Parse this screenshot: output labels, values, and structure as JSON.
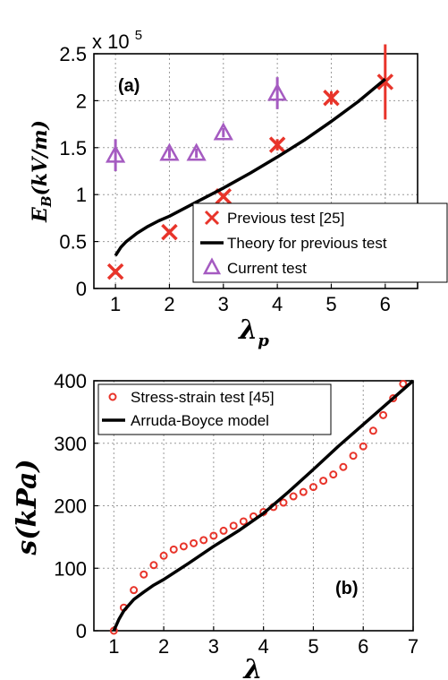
{
  "chart_data": [
    {
      "type": "scatter",
      "panel_label": "(a)",
      "multiplier_label": "x 10",
      "multiplier_exponent": "5",
      "ylabel_main": "E",
      "ylabel_sub": "B",
      "ylabel_unit": "(kV/m)",
      "xlabel_main": "λ",
      "xlabel_sub": "p",
      "xlim": [
        0.6,
        6.6
      ],
      "ylim": [
        0,
        2.5
      ],
      "xticks": [
        "1",
        "2",
        "3",
        "4",
        "5",
        "6"
      ],
      "yticks": [
        "0",
        "0.5",
        "1",
        "1.5",
        "2",
        "2.5"
      ],
      "grid": true,
      "legend_position": "lower-right",
      "series": [
        {
          "name": "Previous test [25]",
          "marker": "x",
          "color": "#e8342a",
          "points": [
            {
              "x": 1,
              "y": 0.18,
              "err": 0
            },
            {
              "x": 2,
              "y": 0.6,
              "err": 0
            },
            {
              "x": 3,
              "y": 0.98,
              "err": 0
            },
            {
              "x": 4,
              "y": 1.53,
              "err": 0.06
            },
            {
              "x": 5,
              "y": 2.03,
              "err": 0.07
            },
            {
              "x": 6,
              "y": 2.2,
              "err": 0.4
            }
          ]
        },
        {
          "name": "Theory for previous test",
          "marker": "line",
          "color": "#000000",
          "x": [
            1.0,
            1.1,
            1.2,
            1.4,
            1.6,
            1.8,
            2.0,
            2.5,
            3.0,
            3.5,
            4.0,
            4.5,
            5.0,
            5.5,
            6.0
          ],
          "y": [
            0.35,
            0.44,
            0.5,
            0.59,
            0.66,
            0.72,
            0.77,
            0.92,
            1.07,
            1.23,
            1.4,
            1.58,
            1.78,
            1.99,
            2.23
          ]
        },
        {
          "name": "Current test",
          "marker": "triangle",
          "color": "#a55bc1",
          "points": [
            {
              "x": 1,
              "y": 1.42,
              "err": 0.17
            },
            {
              "x": 2,
              "y": 1.44,
              "err": 0.05
            },
            {
              "x": 2.5,
              "y": 1.44,
              "err": 0.05
            },
            {
              "x": 3,
              "y": 1.66,
              "err": 0.05
            },
            {
              "x": 4,
              "y": 2.08,
              "err": 0.17
            }
          ]
        }
      ]
    },
    {
      "type": "scatter",
      "panel_label": "(b)",
      "ylabel_main": "s",
      "ylabel_unit": "(kPa)",
      "xlabel_main": "λ",
      "xlim": [
        0.6,
        7
      ],
      "ylim": [
        0,
        400
      ],
      "xticks": [
        "1",
        "2",
        "3",
        "4",
        "5",
        "6",
        "7"
      ],
      "yticks": [
        "0",
        "100",
        "200",
        "300",
        "400"
      ],
      "grid": true,
      "legend_position": "upper-left",
      "series": [
        {
          "name": "Stress-strain test [45]",
          "marker": "circle",
          "color": "#e8342a",
          "x": [
            1.0,
            1.2,
            1.4,
            1.6,
            1.8,
            2.0,
            2.2,
            2.4,
            2.6,
            2.8,
            3.0,
            3.2,
            3.4,
            3.6,
            3.8,
            4.0,
            4.2,
            4.4,
            4.6,
            4.8,
            5.0,
            5.2,
            5.4,
            5.6,
            5.8,
            6.0,
            6.2,
            6.4,
            6.6,
            6.8
          ],
          "y": [
            0,
            37,
            65,
            90,
            105,
            120,
            130,
            135,
            140,
            145,
            152,
            160,
            168,
            175,
            183,
            190,
            198,
            205,
            215,
            222,
            230,
            240,
            250,
            262,
            280,
            295,
            320,
            345,
            372,
            395
          ]
        },
        {
          "name": "Arruda-Boyce model",
          "marker": "line",
          "color": "#000000",
          "x": [
            1.0,
            1.1,
            1.2,
            1.4,
            1.6,
            1.8,
            2.0,
            2.5,
            3.0,
            3.5,
            4.0,
            4.5,
            5.0,
            5.5,
            6.0,
            6.5,
            7.0
          ],
          "y": [
            0,
            18,
            32,
            50,
            62,
            73,
            82,
            108,
            135,
            160,
            188,
            222,
            258,
            295,
            330,
            365,
            400
          ]
        }
      ]
    }
  ]
}
